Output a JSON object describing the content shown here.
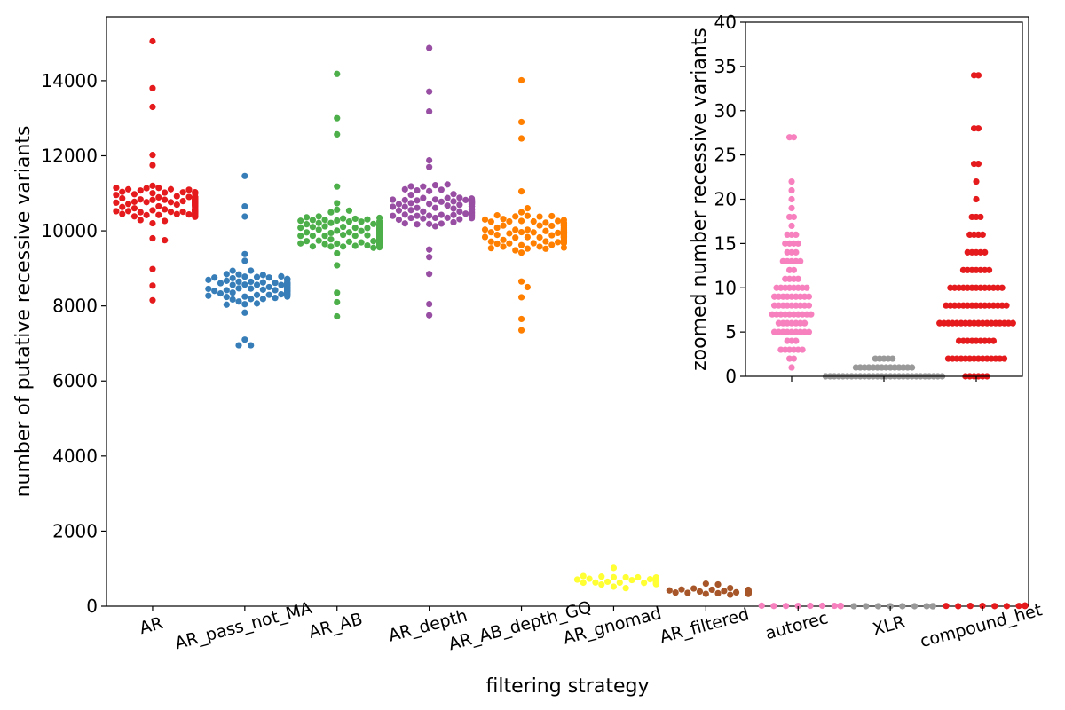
{
  "chart_data": [
    {
      "type": "swarm",
      "title": "",
      "xlabel": "filtering strategy",
      "ylabel": "number of putative recessive variants",
      "ylim": [
        0,
        15700
      ],
      "yticks": [
        0,
        2000,
        4000,
        6000,
        8000,
        10000,
        12000,
        14000
      ],
      "grid": false,
      "series": [
        {
          "name": "AR",
          "color": "#e41a1c",
          "median": 10700,
          "spread": 1300,
          "core_count": 110,
          "outliers": [
            15050,
            13800,
            13300,
            12020,
            11750,
            9800,
            9750,
            8980,
            8540,
            8150
          ]
        },
        {
          "name": "AR_pass_not_MA",
          "color": "#377eb8",
          "median": 8500,
          "spread": 1100,
          "core_count": 90,
          "outliers": [
            11460,
            10650,
            10380,
            9380,
            9200,
            7820,
            7100,
            6950,
            6950
          ]
        },
        {
          "name": "AR_AB",
          "color": "#4daf4a",
          "median": 9950,
          "spread": 1500,
          "core_count": 100,
          "outliers": [
            14180,
            13000,
            12570,
            11180,
            9080,
            8350,
            8100,
            7720
          ]
        },
        {
          "name": "AR_depth",
          "color": "#984ea3",
          "median": 10650,
          "spread": 1500,
          "core_count": 100,
          "outliers": [
            14870,
            13710,
            13180,
            11880,
            11700,
            9500,
            9300,
            8850,
            8050,
            7750
          ]
        },
        {
          "name": "AR_AB_depth_GQ",
          "color": "#ff7f00",
          "median": 9950,
          "spread": 1600,
          "core_count": 100,
          "outliers": [
            14010,
            12900,
            12460,
            11050,
            8650,
            8500,
            8230,
            7650,
            7350
          ]
        },
        {
          "name": "AR_gnomad",
          "color": "#ffff33",
          "median": 680,
          "spread": 420,
          "core_count": 40,
          "outliers": [
            1020
          ]
        },
        {
          "name": "AR_filtered",
          "color": "#a65628",
          "median": 380,
          "spread": 300,
          "core_count": 30,
          "outliers": [
            600,
            580
          ]
        },
        {
          "name": "autorec",
          "color": "#f781bf",
          "median": 8,
          "spread": 20,
          "core_count": 12,
          "outliers": []
        },
        {
          "name": "XLR",
          "color": "#999999",
          "median": 0,
          "spread": 2,
          "core_count": 12,
          "outliers": []
        },
        {
          "name": "compound_het",
          "color": "#e41a1c",
          "median": 8,
          "spread": 30,
          "core_count": 14,
          "outliers": []
        }
      ]
    },
    {
      "type": "swarm",
      "title": "",
      "xlabel": "",
      "ylabel": "zoomed number recessive variants",
      "ylim": [
        0,
        40
      ],
      "yticks": [
        0,
        5,
        10,
        15,
        20,
        25,
        30,
        35,
        40
      ],
      "grid": false,
      "series": [
        {
          "name": "autorec",
          "color": "#f781bf",
          "values": [
            [
              1,
              1
            ],
            [
              2,
              2
            ],
            [
              3,
              6
            ],
            [
              4,
              3
            ],
            [
              5,
              9
            ],
            [
              6,
              7
            ],
            [
              7,
              10
            ],
            [
              8,
              9
            ],
            [
              9,
              9
            ],
            [
              10,
              8
            ],
            [
              11,
              4
            ],
            [
              12,
              2
            ],
            [
              13,
              5
            ],
            [
              14,
              3
            ],
            [
              15,
              4
            ],
            [
              16,
              3
            ],
            [
              17,
              1
            ],
            [
              18,
              2
            ],
            [
              19,
              1
            ],
            [
              20,
              1
            ],
            [
              21,
              1
            ],
            [
              22,
              1
            ],
            [
              27,
              2
            ]
          ]
        },
        {
          "name": "XLR",
          "color": "#999999",
          "values": [
            [
              0,
              28
            ],
            [
              1,
              14
            ],
            [
              2,
              5
            ]
          ]
        },
        {
          "name": "compound_het",
          "color": "#e41a1c",
          "values": [
            [
              0,
              6
            ],
            [
              2,
              14
            ],
            [
              4,
              9
            ],
            [
              6,
              18
            ],
            [
              8,
              15
            ],
            [
              10,
              13
            ],
            [
              12,
              7
            ],
            [
              14,
              5
            ],
            [
              16,
              4
            ],
            [
              18,
              3
            ],
            [
              20,
              1
            ],
            [
              22,
              1
            ],
            [
              24,
              2
            ],
            [
              28,
              2
            ],
            [
              34,
              2
            ]
          ]
        }
      ]
    }
  ]
}
